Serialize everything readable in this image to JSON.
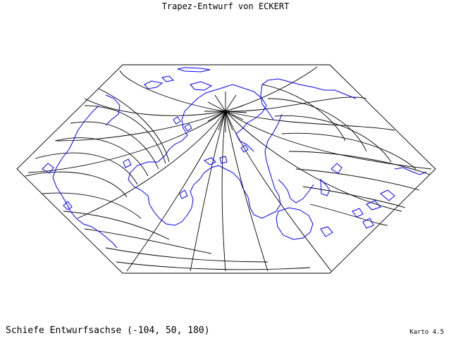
{
  "title": "Trapez-Entwurf von ECKERT",
  "subtitle": "Schiefe Entwurfsachse (-104, 50, 180)",
  "version": "Karto 4.5",
  "colors": {
    "graticule": "#000000",
    "coastline": "#0000ff",
    "background": "#ffffff"
  }
}
